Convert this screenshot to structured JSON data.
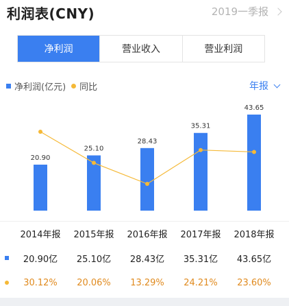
{
  "header": {
    "title": "利润表(CNY)",
    "period": "2019一季报"
  },
  "tabs": [
    {
      "label": "净利润",
      "active": true
    },
    {
      "label": "营业收入",
      "active": false
    },
    {
      "label": "营业利润",
      "active": false
    }
  ],
  "legend": {
    "bar_label": "净利润(亿元)",
    "line_label": "同比"
  },
  "annual_toggle": "年报",
  "colors": {
    "accent": "#3a7ff0",
    "line": "#f5b937",
    "pct_text": "#e08a1e"
  },
  "chart_data": {
    "type": "bar",
    "categories": [
      "2014年报",
      "2015年报",
      "2016年报",
      "2017年报",
      "2018年报"
    ],
    "series": [
      {
        "name": "净利润(亿元)",
        "type": "bar",
        "values": [
          20.9,
          25.1,
          28.43,
          35.31,
          43.65
        ],
        "labels": [
          "20.90",
          "25.10",
          "28.43",
          "35.31",
          "43.65"
        ]
      },
      {
        "name": "同比",
        "type": "line",
        "values": [
          30.12,
          20.06,
          13.29,
          24.21,
          23.6
        ]
      }
    ]
  },
  "table": {
    "headers": [
      "2014年报",
      "2015年报",
      "2016年报",
      "2017年报",
      "2018年报"
    ],
    "profit_row": [
      "20.90亿",
      "25.10亿",
      "28.43亿",
      "35.31亿",
      "43.65亿"
    ],
    "yoy_row": [
      "30.12%",
      "20.06%",
      "13.29%",
      "24.21%",
      "23.60%"
    ]
  }
}
